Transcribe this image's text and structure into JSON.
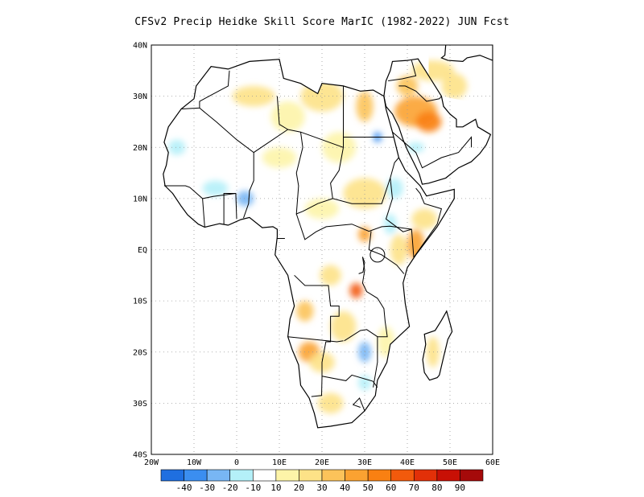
{
  "title": "CFSv2 Precip Heidke Skill Score MarIC (1982-2022) JUN Fcst",
  "map": {
    "lon_range": [
      -20,
      60
    ],
    "lat_range": [
      -40,
      40
    ],
    "lon_ticks": [
      {
        "value": -20,
        "label": "20W"
      },
      {
        "value": -10,
        "label": "10W"
      },
      {
        "value": 0,
        "label": "0"
      },
      {
        "value": 10,
        "label": "10E"
      },
      {
        "value": 20,
        "label": "20E"
      },
      {
        "value": 30,
        "label": "30E"
      },
      {
        "value": 40,
        "label": "40E"
      },
      {
        "value": 50,
        "label": "50E"
      },
      {
        "value": 60,
        "label": "60E"
      }
    ],
    "lat_ticks": [
      {
        "value": 40,
        "label": "40N"
      },
      {
        "value": 30,
        "label": "30N"
      },
      {
        "value": 20,
        "label": "20N"
      },
      {
        "value": 10,
        "label": "10N"
      },
      {
        "value": 0,
        "label": "EQ"
      },
      {
        "value": -10,
        "label": "10S"
      },
      {
        "value": -20,
        "label": "20S"
      },
      {
        "value": -30,
        "label": "30S"
      },
      {
        "value": -40,
        "label": "40S"
      }
    ],
    "grid": true
  },
  "colorbar": {
    "colors": [
      "#1f6fe0",
      "#3b8ef0",
      "#78b6f4",
      "#b4f0f8",
      "#ffffff",
      "#fdf4a8",
      "#fde287",
      "#fcc35a",
      "#fba231",
      "#f98012",
      "#f25a0c",
      "#e23008",
      "#c81005",
      "#a50a0a"
    ],
    "labels": [
      "-40",
      "-30",
      "-20",
      "-10",
      "10",
      "20",
      "30",
      "40",
      "50",
      "60",
      "70",
      "80",
      "90"
    ]
  },
  "skill_regions": [
    {
      "lon": 42,
      "lat": 27,
      "rx": 5,
      "ry": 3,
      "level": 8
    },
    {
      "lon": 45,
      "lat": 25,
      "rx": 3,
      "ry": 2,
      "level": 9
    },
    {
      "lon": 40,
      "lat": 32,
      "rx": 2.5,
      "ry": 2,
      "level": 7
    },
    {
      "lon": 51,
      "lat": 32,
      "rx": 3,
      "ry": 2.5,
      "level": 6
    },
    {
      "lon": 46,
      "lat": 35,
      "rx": 5,
      "ry": 2,
      "level": 6
    },
    {
      "lon": 30,
      "lat": 28,
      "rx": 2,
      "ry": 3,
      "level": 7
    },
    {
      "lon": 28,
      "lat": -8,
      "rx": 1.5,
      "ry": 1.5,
      "level": 10
    },
    {
      "lon": 30,
      "lat": 3,
      "rx": 1.5,
      "ry": 1.5,
      "level": 8
    },
    {
      "lon": 42,
      "lat": 1,
      "rx": 2,
      "ry": 3,
      "level": 8
    },
    {
      "lon": 38,
      "lat": 0,
      "rx": 2,
      "ry": 3,
      "level": 6
    },
    {
      "lon": 17,
      "lat": -20,
      "rx": 2.5,
      "ry": 2,
      "level": 8
    },
    {
      "lon": 16,
      "lat": -12,
      "rx": 2,
      "ry": 2,
      "level": 7
    },
    {
      "lon": 22,
      "lat": -5,
      "rx": 2.5,
      "ry": 2,
      "level": 6
    },
    {
      "lon": 25,
      "lat": -15,
      "rx": 3,
      "ry": 3,
      "level": 6
    },
    {
      "lon": 22,
      "lat": -30,
      "rx": 3,
      "ry": 2,
      "level": 6
    },
    {
      "lon": 4,
      "lat": 30,
      "rx": 5,
      "ry": 2,
      "level": 6
    },
    {
      "lon": 12,
      "lat": 26,
      "rx": 4,
      "ry": 3,
      "level": 5
    },
    {
      "lon": 20,
      "lat": 30,
      "rx": 5,
      "ry": 3,
      "level": 6
    },
    {
      "lon": 30,
      "lat": 11,
      "rx": 5,
      "ry": 3,
      "level": 6
    },
    {
      "lon": 24,
      "lat": 20,
      "rx": 4,
      "ry": 3,
      "level": 5
    },
    {
      "lon": 44,
      "lat": 6,
      "rx": 3,
      "ry": 2,
      "level": 6
    },
    {
      "lon": 20,
      "lat": -22,
      "rx": 3,
      "ry": 2,
      "level": 6
    },
    {
      "lon": 35,
      "lat": -18,
      "rx": 2,
      "ry": 3,
      "level": 5
    },
    {
      "lon": 10,
      "lat": 18,
      "rx": 4,
      "ry": 2,
      "level": 5
    },
    {
      "lon": 20,
      "lat": 8,
      "rx": 4,
      "ry": 2,
      "level": 5
    },
    {
      "lon": 46,
      "lat": -20,
      "rx": 1.5,
      "ry": 3,
      "level": 6
    },
    {
      "lon": 2,
      "lat": 10,
      "rx": 2,
      "ry": 1.5,
      "level": 2
    },
    {
      "lon": -5,
      "lat": 12,
      "rx": 3,
      "ry": 1.5,
      "level": 3
    },
    {
      "lon": 30,
      "lat": -20,
      "rx": 1.5,
      "ry": 2,
      "level": 2
    },
    {
      "lon": 33,
      "lat": 22,
      "rx": 1,
      "ry": 1,
      "level": 1
    },
    {
      "lon": 42,
      "lat": 20,
      "rx": 2,
      "ry": 1,
      "level": 3
    },
    {
      "lon": 37,
      "lat": 12,
      "rx": 2,
      "ry": 2,
      "level": 3
    },
    {
      "lon": -14,
      "lat": 20,
      "rx": 2,
      "ry": 1.5,
      "level": 3
    },
    {
      "lon": 36,
      "lat": 5,
      "rx": 1.5,
      "ry": 2,
      "level": 3
    },
    {
      "lon": 30,
      "lat": -26,
      "rx": 1.5,
      "ry": 1.5,
      "level": 3
    }
  ]
}
